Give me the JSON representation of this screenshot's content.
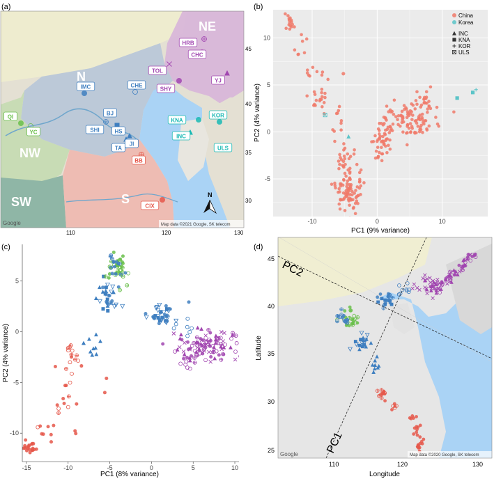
{
  "colors": {
    "china": "#f07a6a",
    "korea": "#5bc4c8",
    "ne": "#a146b0",
    "n": "#3f7fc0",
    "nw": "#6abf4b",
    "s": "#e5574a",
    "kr": "#19b9b4",
    "sea": "#aad3f5",
    "panelbg": "#ebebeb",
    "grid": "#ffffff"
  },
  "panel_a": {
    "tag": "(a)",
    "region_labels": [
      "NE",
      "N",
      "NW",
      "SW",
      "S"
    ],
    "sites": [
      {
        "code": "HRB",
        "group": "ne"
      },
      {
        "code": "CHC",
        "group": "ne"
      },
      {
        "code": "TOL",
        "group": "ne"
      },
      {
        "code": "SHY",
        "group": "ne"
      },
      {
        "code": "YJ",
        "group": "ne"
      },
      {
        "code": "IMC",
        "group": "n"
      },
      {
        "code": "CHE",
        "group": "n"
      },
      {
        "code": "BJ",
        "group": "n"
      },
      {
        "code": "SHI",
        "group": "n"
      },
      {
        "code": "HS",
        "group": "n"
      },
      {
        "code": "TA",
        "group": "n"
      },
      {
        "code": "JI",
        "group": "n"
      },
      {
        "code": "QI",
        "group": "nw"
      },
      {
        "code": "YC",
        "group": "nw"
      },
      {
        "code": "BB",
        "group": "s"
      },
      {
        "code": "CIX",
        "group": "s"
      },
      {
        "code": "KNA",
        "group": "kr"
      },
      {
        "code": "KOR",
        "group": "kr"
      },
      {
        "code": "INC",
        "group": "kr"
      },
      {
        "code": "ULS",
        "group": "kr"
      }
    ],
    "y_ticks": [
      "45",
      "40",
      "35",
      "30"
    ],
    "x_ticks": [
      "110",
      "120",
      "130"
    ],
    "google": "Google",
    "credit": "Map data ©2021 Google, SK telecom",
    "north": "N"
  },
  "panel_d": {
    "tag": "(d)",
    "xlabel": "Longitude",
    "ylabel": "Latitude",
    "y_ticks": [
      "45",
      "40",
      "35",
      "30",
      "25"
    ],
    "x_ticks": [
      "110",
      "120",
      "130"
    ],
    "axis_labels": [
      "PC2",
      "PC1"
    ],
    "google": "Google",
    "credit": "Map data ©2020 Google, SK telecom"
  },
  "chart_data": [
    {
      "panel": "(b)",
      "type": "scatter",
      "xlabel": "PC1 (9% variance)",
      "ylabel": "PC2 (4% variance)",
      "xlim": [
        -16,
        17
      ],
      "ylim": [
        -9,
        13
      ],
      "x_ticks": [
        -10,
        0,
        10
      ],
      "y_ticks": [
        -5,
        0,
        5,
        10
      ],
      "grid": true,
      "legend_position": "top-right",
      "legend": {
        "colors": [
          {
            "label": "China"
          },
          {
            "label": "Korea"
          }
        ],
        "shapes": [
          {
            "label": "INC",
            "shape": "triangle"
          },
          {
            "label": "KNA",
            "shape": "square"
          },
          {
            "label": "KOR",
            "shape": "plus"
          },
          {
            "label": "ULS",
            "shape": "boxx"
          }
        ]
      },
      "clusters": [
        {
          "series": "China",
          "cx": -13.5,
          "cy": 11.8,
          "sx": 0.5,
          "sy": 0.5,
          "n": 14
        },
        {
          "series": "China",
          "cx": -11.5,
          "cy": 9.3,
          "sx": 1.0,
          "sy": 0.9,
          "n": 8
        },
        {
          "series": "China",
          "cx": -10.2,
          "cy": 6.8,
          "sx": 0.6,
          "sy": 0.4,
          "n": 5
        },
        {
          "series": "China",
          "cx": -8.8,
          "cy": 3.2,
          "sx": 0.8,
          "sy": 1.2,
          "n": 22
        },
        {
          "series": "China",
          "cx": -6.3,
          "cy": 1.2,
          "sx": 0.6,
          "sy": 0.7,
          "n": 8
        },
        {
          "series": "China",
          "cx": -5.0,
          "cy": -3.0,
          "sx": 0.9,
          "sy": 1.0,
          "n": 30
        },
        {
          "series": "China",
          "cx": -4.3,
          "cy": -6.5,
          "sx": 1.0,
          "sy": 0.9,
          "n": 80
        },
        {
          "series": "China",
          "cx": 0.5,
          "cy": -1.2,
          "sx": 1.0,
          "sy": 0.8,
          "n": 40
        },
        {
          "series": "China",
          "cx": 4.5,
          "cy": 1.2,
          "sx": 2.2,
          "sy": 1.0,
          "n": 100
        },
        {
          "series": "China",
          "cx": 8.0,
          "cy": 3.0,
          "sx": 0.9,
          "sy": 0.7,
          "n": 25
        }
      ],
      "points": [
        {
          "series": "China",
          "x": -5.2,
          "y": 6.2
        },
        {
          "series": "Korea",
          "shape": "boxx",
          "x": -8.0,
          "y": 1.8
        },
        {
          "series": "Korea",
          "shape": "triangle",
          "x": -4.4,
          "y": -0.5
        },
        {
          "series": "Korea",
          "shape": "square",
          "x": 12.3,
          "y": 3.6
        },
        {
          "series": "Korea",
          "shape": "square",
          "x": 14.7,
          "y": 4.2
        },
        {
          "series": "Korea",
          "shape": "plus",
          "x": 15.2,
          "y": 4.5
        }
      ]
    },
    {
      "panel": "(c)",
      "type": "scatter",
      "xlabel": "PC1 (8% variance)",
      "ylabel": "PC2 (4% variance)",
      "xlim": [
        -15.5,
        10.5
      ],
      "ylim": [
        -12.8,
        8.6
      ],
      "x_ticks": [
        -15,
        -10,
        -5,
        0,
        5,
        10
      ],
      "y_ticks": [
        -10,
        -5,
        0,
        5
      ],
      "grid": true,
      "clusters": [
        {
          "series": "S",
          "cx": -14.6,
          "cy": -11.5,
          "sx": 0.5,
          "sy": 0.4,
          "n": 20,
          "shapes": [
            "circle"
          ]
        },
        {
          "series": "S",
          "cx": -12.5,
          "cy": -10.0,
          "sx": 1.2,
          "sy": 0.4,
          "n": 10,
          "shapes": [
            "circle",
            "ocirc"
          ]
        },
        {
          "series": "S",
          "cx": -10.6,
          "cy": -6.2,
          "sx": 0.6,
          "sy": 1.2,
          "n": 12,
          "shapes": [
            "circle",
            "ocplus",
            "ocirc"
          ]
        },
        {
          "series": "S",
          "cx": -9.4,
          "cy": -3.1,
          "sx": 0.4,
          "sy": 0.8,
          "n": 14,
          "shapes": [
            "ocplus",
            "circle",
            "ocirc"
          ]
        },
        {
          "series": "N",
          "cx": -7.3,
          "cy": -1.1,
          "sx": 0.5,
          "sy": 0.6,
          "n": 10,
          "shapes": [
            "triangle"
          ]
        },
        {
          "series": "N",
          "cx": -5.0,
          "cy": 3.1,
          "sx": 0.6,
          "sy": 0.8,
          "n": 30,
          "shapes": [
            "square",
            "circle",
            "otri",
            "triangle"
          ]
        },
        {
          "series": "NW",
          "cx": -4.0,
          "cy": 6.2,
          "sx": 0.55,
          "sy": 0.7,
          "n": 38,
          "shapes": [
            "ocplus",
            "ocirc",
            "circle"
          ]
        },
        {
          "series": "N",
          "cx": -4.2,
          "cy": 6.6,
          "sx": 0.4,
          "sy": 0.6,
          "n": 14,
          "shapes": [
            "circle",
            "ocplus"
          ]
        },
        {
          "series": "N",
          "cx": 1.2,
          "cy": 1.8,
          "sx": 1.1,
          "sy": 0.6,
          "n": 36,
          "shapes": [
            "circle",
            "square",
            "otri"
          ]
        },
        {
          "series": "N",
          "cx": 3.8,
          "cy": 0.6,
          "sx": 0.8,
          "sy": 0.5,
          "n": 8,
          "shapes": [
            "ocirc"
          ]
        },
        {
          "series": "NE",
          "cx": 6.2,
          "cy": -1.6,
          "sx": 2.1,
          "sy": 0.8,
          "n": 110,
          "shapes": [
            "triangle",
            "xmark",
            "circle",
            "ocirc",
            "ocplus"
          ]
        }
      ],
      "points": [
        {
          "series": "S",
          "x": -5.6,
          "y": -6.0
        },
        {
          "series": "S",
          "x": -5.4,
          "y": -4.6
        }
      ]
    }
  ]
}
